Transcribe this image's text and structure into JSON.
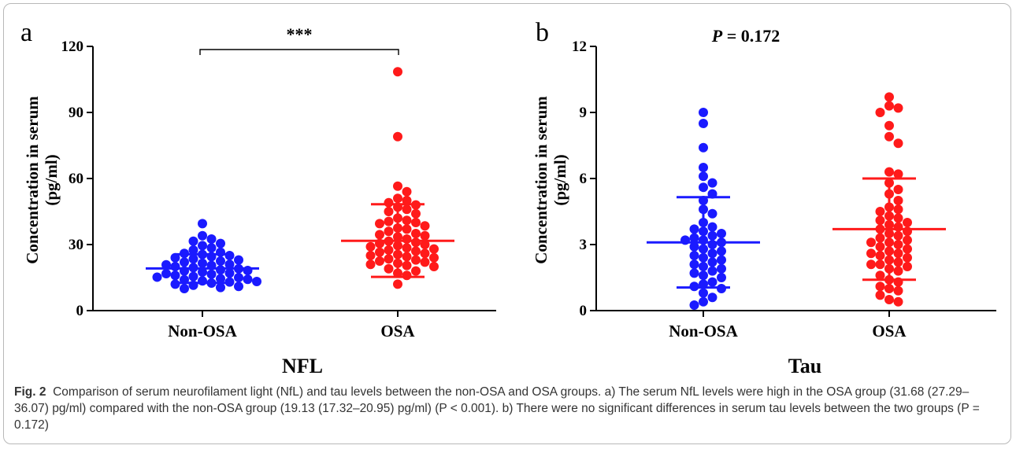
{
  "caption": {
    "label": "Fig. 2",
    "text": "Comparison of serum neurofilament light (NfL) and tau levels between the non-OSA and OSA groups. a) The serum NfL levels were high in the OSA group (31.68 (27.29–36.07) pg/ml) compared with the non-OSA group (19.13 (17.32–20.95) pg/ml) (P < 0.001). b) There were no significant differences in serum tau levels between the two groups (P = 0.172)"
  },
  "colors": {
    "non_osa": "#1a1aff",
    "osa": "#ff1a1a",
    "axis": "#000000"
  },
  "chart_data": [
    {
      "type": "scatter",
      "panel_label": "a",
      "title": "",
      "xlabel": "NFL",
      "ylabel": "Concentration in serum (pg/ml)",
      "ylabel_lines": [
        "Concentration in serum",
        "(pg/ml)"
      ],
      "ylim": [
        0,
        120
      ],
      "yticks": [
        "0",
        "30",
        "60",
        "90",
        "120"
      ],
      "categories": [
        "Non-OSA",
        "OSA"
      ],
      "annotation": "***",
      "series": [
        {
          "name": "Non-OSA",
          "mean": 19.13,
          "sd_low": 12.6,
          "sd_high": 25.6,
          "values": [
            39.5,
            34,
            32.5,
            31.5,
            30.5,
            29.5,
            28.5,
            27.5,
            26.5,
            26,
            25.5,
            25,
            24.5,
            24,
            23.5,
            23,
            22.5,
            22,
            21.5,
            21,
            20.5,
            20,
            19.5,
            19,
            18.5,
            18,
            17.5,
            17,
            16.5,
            16,
            15.5,
            15,
            14.5,
            14,
            13.5,
            13,
            12.5,
            12,
            11.5,
            11,
            10.5,
            10,
            20.8,
            18.2,
            16.8,
            15.2,
            14.2,
            13.2
          ]
        },
        {
          "name": "OSA",
          "mean": 31.68,
          "sd_low": 15.3,
          "sd_high": 48.3,
          "values": [
            108.5,
            79,
            56.5,
            54,
            51,
            50,
            49,
            48,
            47,
            46,
            45,
            44,
            42,
            41,
            40.5,
            40,
            39.5,
            38.5,
            37.5,
            37,
            36,
            35,
            34.5,
            34,
            33.5,
            32.5,
            31.5,
            31,
            30,
            29.5,
            29,
            28,
            27.5,
            27,
            26,
            25.5,
            25,
            24.5,
            24,
            23.5,
            23,
            22.5,
            22,
            21.5,
            21,
            20.5,
            20,
            19,
            18,
            17,
            16,
            12,
            26.5,
            28.5,
            30.5
          ]
        }
      ]
    },
    {
      "type": "scatter",
      "panel_label": "b",
      "title": "",
      "xlabel": "Tau",
      "ylabel": "Concentration in serum (pg/ml)",
      "ylabel_lines": [
        "Concentration in serum",
        "(pg/ml)"
      ],
      "ylim": [
        0,
        12
      ],
      "yticks": [
        "0",
        "3",
        "6",
        "9",
        "12"
      ],
      "categories": [
        "Non-OSA",
        "OSA"
      ],
      "annotation": "P = 0.172",
      "annotation_italic": "P",
      "annotation_rest": " = 0.172",
      "series": [
        {
          "name": "Non-OSA",
          "mean": 3.1,
          "sd_low": 1.05,
          "sd_high": 5.15,
          "values": [
            9.0,
            8.5,
            7.4,
            6.5,
            6.1,
            5.8,
            5.6,
            5.3,
            5.0,
            4.6,
            4.4,
            4.0,
            3.8,
            3.7,
            3.6,
            3.5,
            3.4,
            3.3,
            3.2,
            3.2,
            3.1,
            3.0,
            2.9,
            2.8,
            2.7,
            2.6,
            2.5,
            2.4,
            2.3,
            2.2,
            2.1,
            2.0,
            1.9,
            1.8,
            1.7,
            1.6,
            1.5,
            1.3,
            1.2,
            1.1,
            1.0,
            0.8,
            0.6,
            0.4,
            0.25
          ]
        },
        {
          "name": "OSA",
          "mean": 3.7,
          "sd_low": 1.4,
          "sd_high": 6.0,
          "values": [
            9.7,
            9.3,
            9.2,
            9.0,
            8.4,
            7.9,
            7.6,
            6.3,
            6.2,
            5.8,
            5.5,
            5.3,
            5.0,
            4.7,
            4.6,
            4.5,
            4.3,
            4.2,
            4.0,
            3.9,
            3.8,
            3.7,
            3.6,
            3.5,
            3.4,
            3.3,
            3.2,
            3.1,
            3.0,
            2.9,
            2.8,
            2.7,
            2.6,
            2.5,
            2.4,
            2.3,
            2.2,
            2.1,
            2.1,
            2.0,
            1.9,
            1.8,
            1.6,
            1.4,
            1.3,
            1.1,
            1.0,
            0.9,
            0.7,
            0.5,
            0.4,
            2.6,
            3.1,
            4.1
          ]
        }
      ]
    }
  ]
}
